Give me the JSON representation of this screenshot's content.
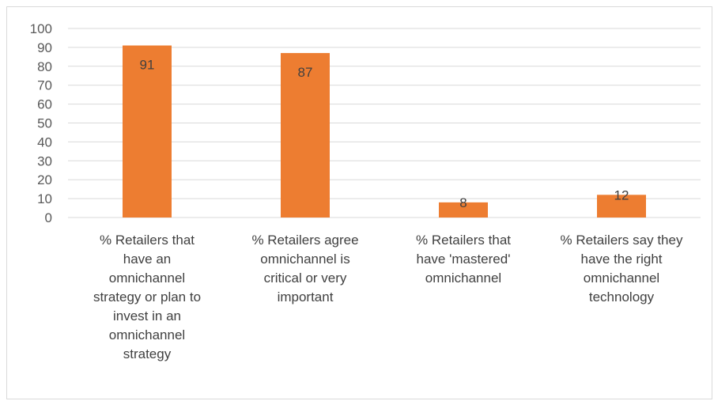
{
  "chart_data": {
    "type": "bar",
    "categories": [
      "% Retailers that have an omnichannel strategy or plan to invest in an omnichannel strategy",
      "% Retailers agree omnichannel is critical or very important",
      "% Retailers that have 'mastered' omnichannel",
      "% Retailers say they have the right omnichannel technology"
    ],
    "category_lines": [
      [
        "% Retailers that",
        "have an",
        "omnichannel",
        "strategy or plan to",
        "invest in an",
        "omnichannel",
        "strategy"
      ],
      [
        "% Retailers agree",
        "omnichannel is",
        "critical or very",
        "important"
      ],
      [
        "% Retailers that",
        "have 'mastered'",
        "omnichannel"
      ],
      [
        "% Retailers say they",
        "have the right",
        "omnichannel",
        "technology"
      ]
    ],
    "values": [
      91,
      87,
      8,
      12
    ],
    "data_labels": [
      "91",
      "87",
      "8",
      "12"
    ],
    "ylim": [
      0,
      100
    ],
    "yticks": [
      0,
      10,
      20,
      30,
      40,
      50,
      60,
      70,
      80,
      90,
      100
    ],
    "grid": true,
    "bar_color": "#ED7D31",
    "grid_color": "#D9D9D9",
    "title": "",
    "xlabel": "",
    "ylabel": ""
  }
}
